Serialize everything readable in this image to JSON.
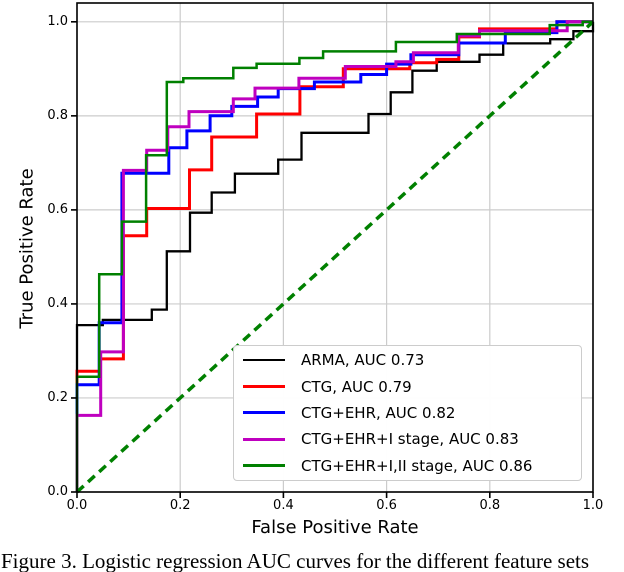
{
  "caption": "Figure 3. Logistic regression AUC curves for the different feature sets",
  "colors": {
    "background": "#ffffff",
    "grid": "#cccccc",
    "spine": "#000000",
    "legend_border": "#cccccc"
  },
  "chart_data": {
    "type": "line",
    "subtype": "roc-step-curves",
    "title": "",
    "xlabel": "False Positive Rate",
    "ylabel": "True Positive Rate",
    "xlim": [
      0.0,
      1.0
    ],
    "ylim": [
      0.0,
      1.04
    ],
    "xticks": [
      "0.0",
      "0.2",
      "0.4",
      "0.6",
      "0.8",
      "1.0"
    ],
    "yticks": [
      "0.0",
      "0.2",
      "0.4",
      "0.6",
      "0.8",
      "1.0"
    ],
    "grid": true,
    "legend_position": "lower right",
    "series": [
      {
        "name": "ARMA",
        "label": "ARMA, AUC 0.73",
        "auc": 0.73,
        "color": "#000000",
        "width": 2.3,
        "points": [
          [
            0,
            0
          ],
          [
            0,
            0.355
          ],
          [
            0.05,
            0.355
          ],
          [
            0.05,
            0.366
          ],
          [
            0.145,
            0.366
          ],
          [
            0.145,
            0.388
          ],
          [
            0.174,
            0.388
          ],
          [
            0.174,
            0.512
          ],
          [
            0.219,
            0.512
          ],
          [
            0.219,
            0.594
          ],
          [
            0.261,
            0.594
          ],
          [
            0.261,
            0.637
          ],
          [
            0.306,
            0.637
          ],
          [
            0.306,
            0.677
          ],
          [
            0.39,
            0.677
          ],
          [
            0.39,
            0.707
          ],
          [
            0.435,
            0.707
          ],
          [
            0.435,
            0.764
          ],
          [
            0.565,
            0.764
          ],
          [
            0.565,
            0.804
          ],
          [
            0.608,
            0.804
          ],
          [
            0.608,
            0.85
          ],
          [
            0.65,
            0.85
          ],
          [
            0.65,
            0.896
          ],
          [
            0.697,
            0.896
          ],
          [
            0.697,
            0.915
          ],
          [
            0.78,
            0.915
          ],
          [
            0.78,
            0.93
          ],
          [
            0.826,
            0.93
          ],
          [
            0.826,
            0.954
          ],
          [
            0.917,
            0.954
          ],
          [
            0.917,
            0.963
          ],
          [
            0.962,
            0.963
          ],
          [
            0.962,
            0.98
          ],
          [
            1,
            0.98
          ],
          [
            1,
            1
          ]
        ]
      },
      {
        "name": "CTG",
        "label": "CTG, AUC 0.79",
        "auc": 0.79,
        "color": "#ff0000",
        "width": 3,
        "points": [
          [
            0,
            0
          ],
          [
            0,
            0.257
          ],
          [
            0.045,
            0.257
          ],
          [
            0.045,
            0.283
          ],
          [
            0.09,
            0.283
          ],
          [
            0.09,
            0.545
          ],
          [
            0.135,
            0.545
          ],
          [
            0.135,
            0.603
          ],
          [
            0.218,
            0.603
          ],
          [
            0.218,
            0.685
          ],
          [
            0.261,
            0.685
          ],
          [
            0.261,
            0.755
          ],
          [
            0.348,
            0.755
          ],
          [
            0.348,
            0.804
          ],
          [
            0.432,
            0.804
          ],
          [
            0.432,
            0.862
          ],
          [
            0.516,
            0.862
          ],
          [
            0.516,
            0.9
          ],
          [
            0.645,
            0.9
          ],
          [
            0.645,
            0.913
          ],
          [
            0.697,
            0.913
          ],
          [
            0.697,
            0.92
          ],
          [
            0.74,
            0.92
          ],
          [
            0.74,
            0.968
          ],
          [
            0.78,
            0.968
          ],
          [
            0.78,
            0.985
          ],
          [
            0.93,
            0.985
          ],
          [
            0.93,
            1
          ],
          [
            1,
            1
          ]
        ]
      },
      {
        "name": "CTG+EHR",
        "label": "CTG+EHR, AUC 0.82",
        "auc": 0.82,
        "color": "#0000ff",
        "width": 3,
        "points": [
          [
            0,
            0
          ],
          [
            0,
            0.228
          ],
          [
            0.043,
            0.228
          ],
          [
            0.043,
            0.36
          ],
          [
            0.087,
            0.36
          ],
          [
            0.087,
            0.678
          ],
          [
            0.178,
            0.678
          ],
          [
            0.178,
            0.732
          ],
          [
            0.213,
            0.732
          ],
          [
            0.213,
            0.768
          ],
          [
            0.258,
            0.768
          ],
          [
            0.258,
            0.8
          ],
          [
            0.3,
            0.8
          ],
          [
            0.3,
            0.82
          ],
          [
            0.35,
            0.82
          ],
          [
            0.35,
            0.84
          ],
          [
            0.39,
            0.84
          ],
          [
            0.39,
            0.858
          ],
          [
            0.46,
            0.858
          ],
          [
            0.46,
            0.872
          ],
          [
            0.55,
            0.872
          ],
          [
            0.55,
            0.888
          ],
          [
            0.6,
            0.888
          ],
          [
            0.6,
            0.91
          ],
          [
            0.647,
            0.91
          ],
          [
            0.647,
            0.93
          ],
          [
            0.74,
            0.93
          ],
          [
            0.74,
            0.955
          ],
          [
            0.83,
            0.955
          ],
          [
            0.83,
            0.977
          ],
          [
            0.93,
            0.977
          ],
          [
            0.93,
            1
          ],
          [
            1,
            1
          ]
        ]
      },
      {
        "name": "CTG+EHR+I stage",
        "label": "CTG+EHR+I stage, AUC 0.83",
        "auc": 0.83,
        "color": "#bf00bf",
        "width": 3,
        "points": [
          [
            0,
            0
          ],
          [
            0,
            0.163
          ],
          [
            0.046,
            0.163
          ],
          [
            0.046,
            0.298
          ],
          [
            0.09,
            0.298
          ],
          [
            0.09,
            0.684
          ],
          [
            0.135,
            0.684
          ],
          [
            0.135,
            0.727
          ],
          [
            0.176,
            0.727
          ],
          [
            0.176,
            0.777
          ],
          [
            0.217,
            0.777
          ],
          [
            0.217,
            0.809
          ],
          [
            0.303,
            0.809
          ],
          [
            0.303,
            0.836
          ],
          [
            0.345,
            0.836
          ],
          [
            0.345,
            0.859
          ],
          [
            0.43,
            0.859
          ],
          [
            0.43,
            0.88
          ],
          [
            0.52,
            0.88
          ],
          [
            0.52,
            0.905
          ],
          [
            0.618,
            0.905
          ],
          [
            0.618,
            0.915
          ],
          [
            0.652,
            0.915
          ],
          [
            0.652,
            0.934
          ],
          [
            0.739,
            0.934
          ],
          [
            0.739,
            0.97
          ],
          [
            0.78,
            0.97
          ],
          [
            0.78,
            0.981
          ],
          [
            0.95,
            0.981
          ],
          [
            0.95,
            1
          ],
          [
            1,
            1
          ]
        ]
      },
      {
        "name": "CTG+EHR+I,II stage",
        "label": "CTG+EHR+I,II stage, AUC 0.86",
        "auc": 0.86,
        "color": "#008000",
        "width": 2.5,
        "points": [
          [
            0,
            0
          ],
          [
            0,
            0.245
          ],
          [
            0.043,
            0.245
          ],
          [
            0.043,
            0.463
          ],
          [
            0.087,
            0.463
          ],
          [
            0.087,
            0.575
          ],
          [
            0.134,
            0.575
          ],
          [
            0.134,
            0.716
          ],
          [
            0.174,
            0.716
          ],
          [
            0.174,
            0.872
          ],
          [
            0.206,
            0.872
          ],
          [
            0.206,
            0.88
          ],
          [
            0.303,
            0.88
          ],
          [
            0.303,
            0.902
          ],
          [
            0.348,
            0.902
          ],
          [
            0.348,
            0.911
          ],
          [
            0.431,
            0.911
          ],
          [
            0.431,
            0.923
          ],
          [
            0.477,
            0.923
          ],
          [
            0.477,
            0.937
          ],
          [
            0.618,
            0.937
          ],
          [
            0.618,
            0.957
          ],
          [
            0.736,
            0.957
          ],
          [
            0.736,
            0.974
          ],
          [
            0.916,
            0.974
          ],
          [
            0.916,
            0.993
          ],
          [
            0.98,
            0.993
          ],
          [
            0.98,
            1
          ],
          [
            1,
            1
          ]
        ]
      }
    ],
    "reference_line": {
      "name": "chance-diagonal",
      "color": "#008000",
      "style": "dashed",
      "width": 3.5,
      "dash": [
        9,
        6
      ],
      "points": [
        [
          0,
          0
        ],
        [
          1,
          1
        ]
      ]
    }
  }
}
